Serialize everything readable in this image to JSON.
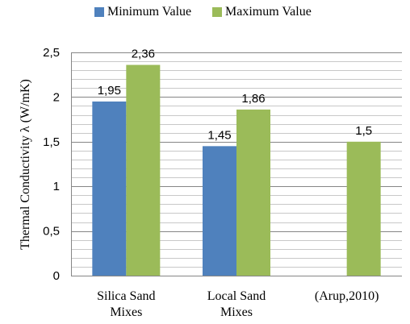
{
  "chart_data": {
    "type": "bar",
    "categories": [
      [
        "Silica Sand",
        "Mixes"
      ],
      [
        "Local Sand",
        "Mixes"
      ],
      [
        "(Arup,2010)"
      ]
    ],
    "series": [
      {
        "name": "Minimum Value",
        "color": "#4f81bd",
        "values": [
          1.95,
          1.45,
          null
        ],
        "labels": [
          "1,95",
          "1,45",
          null
        ]
      },
      {
        "name": "Maximum Value",
        "color": "#9bbb59",
        "values": [
          2.36,
          1.86,
          1.5
        ],
        "labels": [
          "2,36",
          "1,86",
          "1,5"
        ]
      }
    ],
    "ylabel": "Thermal Conductivity λ (W/mK)",
    "ylim": [
      0,
      2.5
    ],
    "yticks": [
      {
        "value": 0,
        "label": "0"
      },
      {
        "value": 0.5,
        "label": "0,5"
      },
      {
        "value": 1,
        "label": "1"
      },
      {
        "value": 1.5,
        "label": "1,5"
      },
      {
        "value": 2,
        "label": "2"
      },
      {
        "value": 2.5,
        "label": "2,5"
      }
    ],
    "minor_grid_step": 0.1,
    "grid": true,
    "legend_position": "top"
  }
}
